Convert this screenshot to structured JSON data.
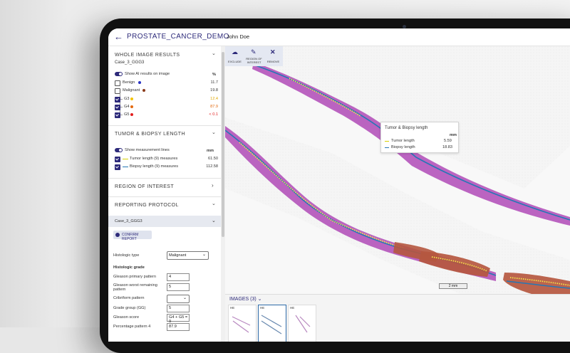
{
  "app": {
    "title": "PROSTATE_CANCER_DEMO",
    "user": "John Doe"
  },
  "whole_image": {
    "header": "WHOLE IMAGE RESULTS",
    "case": "Case_3_GGG3",
    "toggle_label": "Show AI results on image",
    "unit": "%",
    "rows": [
      {
        "label": "Benign",
        "value": "11.7",
        "color": "#2a33c4"
      },
      {
        "label": "Malignant",
        "value": "19.8",
        "color": "#8a3a1a"
      },
      {
        "label": "G3",
        "value": "12.4",
        "color": "#f2c200"
      },
      {
        "label": "G4",
        "value": "87.9",
        "color": "#e36a10"
      },
      {
        "label": "G5",
        "value": "< 0.1",
        "color": "#e21f1f"
      }
    ]
  },
  "tumor": {
    "header": "TUMOR & BIOPSY LENGTH",
    "toggle_label": "Show measurement lines",
    "unit": "mm",
    "rows": [
      {
        "label": "Tumor length (9) measures",
        "value": "61.50"
      },
      {
        "label": "Biopsy length (9) measures",
        "value": "112.58"
      }
    ]
  },
  "roi": {
    "header": "REGION OF INTEREST"
  },
  "reporting": {
    "header": "REPORTING PROTOCOL",
    "case": "Case_3_GGG3",
    "confirm": "CONFIRM REPORT",
    "histologic_type_label": "Histologic type",
    "histologic_type_value": "Malignant",
    "grade_header": "Histologic grade",
    "fields": [
      {
        "label": "Gleason primary pattern",
        "value": "4"
      },
      {
        "label": "Gleason worst remaining pattern",
        "value": "5"
      },
      {
        "label": "Cribriform pattern",
        "value": ""
      },
      {
        "label": "Grade group (GG)",
        "value": "5"
      },
      {
        "label": "Gleason score",
        "value": "G4 + G5 = 9"
      },
      {
        "label": "Percentage pattern 4",
        "value": "87.9"
      }
    ]
  },
  "toolbar": {
    "exclude": "EXCLUDE",
    "roi": "REGION OF INTEREST",
    "remove": "REMOVE"
  },
  "tooltip": {
    "title": "Tumor & Biopsy length",
    "unit": "mm",
    "rows": [
      {
        "label": "Tumor length",
        "value": "5.59"
      },
      {
        "label": "Biopsy length",
        "value": "18.83"
      }
    ]
  },
  "scale_bar": "2 mm",
  "images": {
    "title": "IMAGES (3)",
    "stain": "HE"
  },
  "colors": {
    "accent": "#2d2a7a",
    "tissue_pink": "#b24fb8",
    "tumor": "#b5573f",
    "measure_line": "#2577b5",
    "tumor_line": "#f3e34a"
  }
}
